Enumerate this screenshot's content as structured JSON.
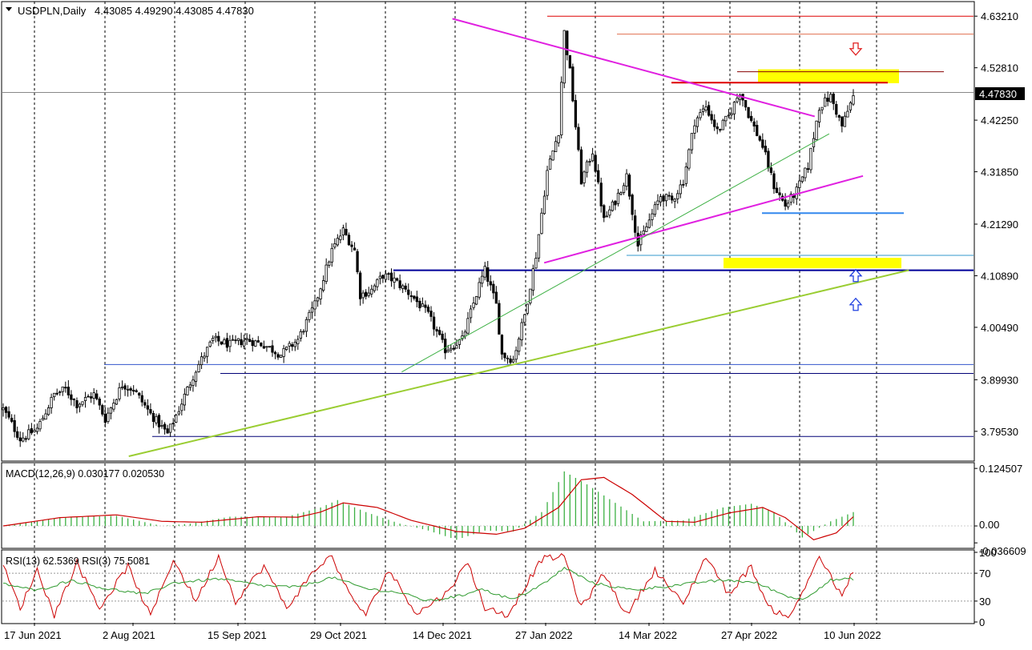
{
  "header": {
    "symbol_title": "USDPLN,Daily",
    "ohlc": "4.43085 4.49290 4.43085 4.47830"
  },
  "price_axis": {
    "tick_labels": [
      "4.63210",
      "4.52810",
      "4.42250",
      "4.31850",
      "4.21290",
      "4.10890",
      "4.00490",
      "3.89930",
      "3.79530"
    ],
    "current_price_label": "4.47830"
  },
  "macd_panel": {
    "title": "MACD(12,26,9) 0.030177 0.020530",
    "tick_labels": [
      "0.124507",
      "0.00",
      "-0.036609"
    ]
  },
  "rsi_panel": {
    "title": "RSI(13) 62.5369  RSI(3) 75.5081",
    "tick_labels": [
      "100",
      "70",
      "30",
      "0"
    ]
  },
  "time_axis": {
    "tick_labels": [
      "17 Jun 2021",
      "2 Aug 2021",
      "15 Sep 2021",
      "29 Oct 2021",
      "14 Dec 2021",
      "27 Jan 2022",
      "14 Mar 2022",
      "27 Apr 2022",
      "10 Jun 2022"
    ]
  },
  "colors": {
    "bull_candle": "#000000",
    "bear_candle": "#000000",
    "macd_histogram": "#3cb043",
    "macd_signal": "#cc0000",
    "rsi13": "#2e9a2e",
    "rsi3": "#cc0000",
    "trendline_magenta": "#e020e0",
    "trendline_green": "#9acd32",
    "support_blue": "#000099",
    "resistance_red": "#dd0000",
    "zone_yellow": "#ffff00",
    "arrow_down": "#e02020",
    "arrow_up": "#2040e0"
  },
  "chart_data": [
    {
      "type": "candlestick",
      "symbol": "USDPLN",
      "timeframe": "Daily",
      "last_ohlc": {
        "open": 4.43085,
        "high": 4.4929,
        "low": 4.43085,
        "close": 4.4783
      },
      "ylim": [
        3.745,
        4.655
      ],
      "yticks": [
        4.6321,
        4.5281,
        4.4225,
        4.3185,
        4.2129,
        4.1089,
        4.0049,
        3.8993,
        3.7953
      ],
      "current_price": 4.4783,
      "x_categories": [
        "17 Jun 2021",
        "2 Aug 2021",
        "15 Sep 2021",
        "29 Oct 2021",
        "14 Dec 2021",
        "27 Jan 2022",
        "14 Mar 2022",
        "27 Apr 2022",
        "10 Jun 2022"
      ],
      "close_path": [
        [
          0,
          3.84
        ],
        [
          6,
          3.78
        ],
        [
          12,
          3.8
        ],
        [
          18,
          3.87
        ],
        [
          22,
          3.88
        ],
        [
          26,
          3.85
        ],
        [
          32,
          3.87
        ],
        [
          36,
          3.82
        ],
        [
          42,
          3.89
        ],
        [
          46,
          3.88
        ],
        [
          52,
          3.83
        ],
        [
          58,
          3.79
        ],
        [
          62,
          3.84
        ],
        [
          68,
          3.92
        ],
        [
          74,
          3.98
        ],
        [
          80,
          3.97
        ],
        [
          86,
          3.98
        ],
        [
          92,
          3.97
        ],
        [
          98,
          3.95
        ],
        [
          104,
          3.98
        ],
        [
          110,
          4.05
        ],
        [
          116,
          4.16
        ],
        [
          120,
          4.2
        ],
        [
          124,
          4.16
        ],
        [
          126,
          4.07
        ],
        [
          130,
          4.08
        ],
        [
          134,
          4.11
        ],
        [
          138,
          4.1
        ],
        [
          144,
          4.07
        ],
        [
          150,
          4.03
        ],
        [
          156,
          3.96
        ],
        [
          162,
          3.98
        ],
        [
          168,
          4.09
        ],
        [
          170,
          4.12
        ],
        [
          174,
          4.05
        ],
        [
          176,
          3.95
        ],
        [
          180,
          3.94
        ],
        [
          184,
          4.03
        ],
        [
          188,
          4.15
        ],
        [
          192,
          4.32
        ],
        [
          196,
          4.4
        ],
        [
          198,
          4.6
        ],
        [
          200,
          4.52
        ],
        [
          204,
          4.3
        ],
        [
          208,
          4.36
        ],
        [
          212,
          4.22
        ],
        [
          216,
          4.26
        ],
        [
          220,
          4.31
        ],
        [
          224,
          4.17
        ],
        [
          228,
          4.22
        ],
        [
          232,
          4.27
        ],
        [
          236,
          4.26
        ],
        [
          240,
          4.3
        ],
        [
          244,
          4.42
        ],
        [
          248,
          4.45
        ],
        [
          252,
          4.4
        ],
        [
          256,
          4.43
        ],
        [
          260,
          4.48
        ],
        [
          264,
          4.42
        ],
        [
          268,
          4.37
        ],
        [
          272,
          4.29
        ],
        [
          276,
          4.25
        ],
        [
          280,
          4.28
        ],
        [
          284,
          4.33
        ],
        [
          288,
          4.45
        ],
        [
          292,
          4.47
        ],
        [
          296,
          4.41
        ],
        [
          300,
          4.47
        ]
      ],
      "annotations": {
        "resistance_levels": [
          4.632,
          4.596,
          4.52,
          4.498
        ],
        "support_levels": [
          4.15,
          4.12,
          3.93,
          3.912,
          3.785
        ],
        "supply_zone": [
          4.497,
          4.525
        ],
        "demand_zone": [
          4.124,
          4.145
        ],
        "horizontal_support_short": 4.235,
        "descending_trendline": [
          [
            186,
            4.627
          ],
          [
            336,
            4.43
          ]
        ],
        "ascending_trendline_upper": [
          [
            224,
            4.135
          ],
          [
            356,
            4.31
          ]
        ],
        "ascending_trendline_long": [
          [
            52,
            3.745
          ],
          [
            375,
            4.12
          ]
        ],
        "ascending_trendline_thin": [
          [
            165,
            3.915
          ],
          [
            342,
            4.395
          ]
        ],
        "arrow_down_near": 4.565,
        "arrow_up_near": [
          4.11,
          4.052
        ]
      }
    },
    {
      "type": "histogram_line",
      "name": "MACD(12,26,9)",
      "main_value": 0.030177,
      "signal_value": 0.02053,
      "ylim": [
        -0.045,
        0.13
      ],
      "yticks": [
        0.124507,
        0.0,
        -0.036609
      ],
      "histogram_path": [
        [
          0,
          0.0
        ],
        [
          20,
          0.018
        ],
        [
          40,
          0.022
        ],
        [
          56,
          0.0
        ],
        [
          66,
          0.005
        ],
        [
          80,
          0.02
        ],
        [
          100,
          0.02
        ],
        [
          112,
          0.04
        ],
        [
          118,
          0.056
        ],
        [
          128,
          0.03
        ],
        [
          140,
          0.005
        ],
        [
          150,
          -0.01
        ],
        [
          160,
          -0.03
        ],
        [
          170,
          -0.01
        ],
        [
          180,
          -0.012
        ],
        [
          190,
          0.03
        ],
        [
          196,
          0.095
        ],
        [
          198,
          0.118
        ],
        [
          206,
          0.09
        ],
        [
          216,
          0.05
        ],
        [
          226,
          0.01
        ],
        [
          240,
          0.012
        ],
        [
          254,
          0.04
        ],
        [
          264,
          0.048
        ],
        [
          272,
          0.03
        ],
        [
          282,
          -0.025
        ],
        [
          292,
          0.01
        ],
        [
          300,
          0.03
        ]
      ],
      "signal_path": [
        [
          0,
          0.0
        ],
        [
          20,
          0.018
        ],
        [
          40,
          0.024
        ],
        [
          56,
          0.01
        ],
        [
          70,
          0.008
        ],
        [
          90,
          0.02
        ],
        [
          104,
          0.019
        ],
        [
          112,
          0.03
        ],
        [
          120,
          0.05
        ],
        [
          132,
          0.04
        ],
        [
          144,
          0.012
        ],
        [
          160,
          -0.012
        ],
        [
          174,
          -0.018
        ],
        [
          184,
          -0.005
        ],
        [
          196,
          0.04
        ],
        [
          204,
          0.1
        ],
        [
          212,
          0.105
        ],
        [
          222,
          0.068
        ],
        [
          234,
          0.01
        ],
        [
          244,
          0.008
        ],
        [
          256,
          0.028
        ],
        [
          268,
          0.04
        ],
        [
          276,
          0.018
        ],
        [
          286,
          -0.03
        ],
        [
          294,
          -0.015
        ],
        [
          300,
          0.02
        ]
      ]
    },
    {
      "type": "line",
      "name": "RSI",
      "series": [
        {
          "name": "RSI(13)",
          "last_value": 62.5369
        },
        {
          "name": "RSI(3)",
          "last_value": 75.5081
        }
      ],
      "ylim": [
        0,
        100
      ],
      "yticks": [
        100,
        70,
        30,
        0
      ],
      "levels": [
        70,
        30
      ],
      "rsi13_path": [
        [
          0,
          55
        ],
        [
          12,
          45
        ],
        [
          24,
          60
        ],
        [
          36,
          48
        ],
        [
          50,
          40
        ],
        [
          60,
          56
        ],
        [
          76,
          62
        ],
        [
          92,
          52
        ],
        [
          104,
          50
        ],
        [
          116,
          64
        ],
        [
          128,
          48
        ],
        [
          140,
          42
        ],
        [
          150,
          30
        ],
        [
          162,
          38
        ],
        [
          168,
          48
        ],
        [
          180,
          32
        ],
        [
          192,
          58
        ],
        [
          198,
          78
        ],
        [
          208,
          56
        ],
        [
          222,
          46
        ],
        [
          236,
          52
        ],
        [
          248,
          58
        ],
        [
          256,
          60
        ],
        [
          266,
          56
        ],
        [
          276,
          38
        ],
        [
          282,
          32
        ],
        [
          292,
          60
        ],
        [
          300,
          62
        ]
      ],
      "rsi3_path": [
        [
          0,
          80
        ],
        [
          6,
          20
        ],
        [
          12,
          75
        ],
        [
          18,
          10
        ],
        [
          26,
          85
        ],
        [
          34,
          20
        ],
        [
          44,
          80
        ],
        [
          52,
          8
        ],
        [
          60,
          90
        ],
        [
          68,
          30
        ],
        [
          76,
          95
        ],
        [
          82,
          30
        ],
        [
          92,
          80
        ],
        [
          100,
          20
        ],
        [
          110,
          75
        ],
        [
          116,
          95
        ],
        [
          122,
          40
        ],
        [
          128,
          10
        ],
        [
          136,
          75
        ],
        [
          146,
          12
        ],
        [
          156,
          40
        ],
        [
          164,
          85
        ],
        [
          170,
          20
        ],
        [
          178,
          10
        ],
        [
          190,
          90
        ],
        [
          198,
          95
        ],
        [
          204,
          20
        ],
        [
          212,
          70
        ],
        [
          220,
          10
        ],
        [
          230,
          75
        ],
        [
          240,
          25
        ],
        [
          248,
          95
        ],
        [
          256,
          40
        ],
        [
          264,
          80
        ],
        [
          270,
          20
        ],
        [
          278,
          8
        ],
        [
          288,
          95
        ],
        [
          296,
          35
        ],
        [
          300,
          75
        ]
      ]
    }
  ]
}
